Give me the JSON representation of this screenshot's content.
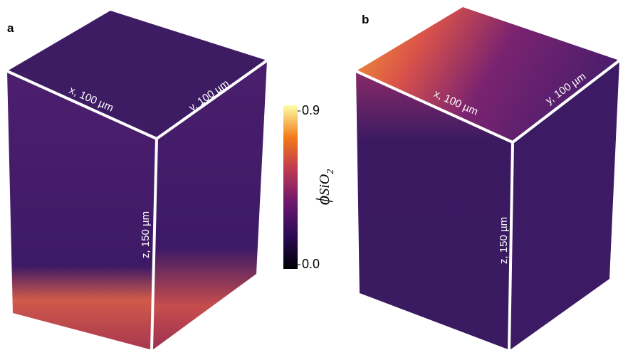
{
  "panels": [
    {
      "letter": "a",
      "x_label": "x, 100 µm",
      "y_label": "y, 100 µm",
      "z_label": "z, 150 µm"
    },
    {
      "letter": "b",
      "x_label": "x, 100 µm",
      "y_label": "y, 100 µm",
      "z_label": "z, 150 µm"
    }
  ],
  "colorbar": {
    "symbol": "ϕ",
    "subscript": "SiO",
    "subscript_index": "2",
    "range": [
      0,
      0.9
    ],
    "ticks": [
      {
        "value": 0.9,
        "label": "0.9"
      },
      {
        "value": 0,
        "label": "0.0"
      }
    ]
  }
}
